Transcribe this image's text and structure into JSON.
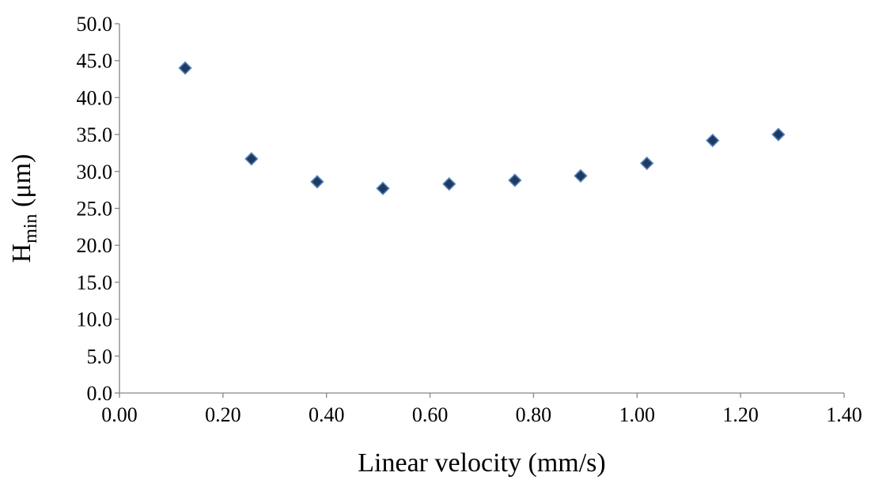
{
  "chart_data": {
    "type": "scatter",
    "title": "",
    "xlabel": "Linear velocity (mm/s)",
    "ylabel": {
      "main": "H",
      "subscript": "min",
      "suffix": " (μm)"
    },
    "xlim": [
      0.0,
      1.4
    ],
    "ylim": [
      0.0,
      50.0
    ],
    "x_ticks": [
      "0.00",
      "0.20",
      "0.40",
      "0.60",
      "0.80",
      "1.00",
      "1.20",
      "1.40"
    ],
    "y_ticks": [
      "0.0",
      "5.0",
      "10.0",
      "15.0",
      "20.0",
      "25.0",
      "30.0",
      "35.0",
      "40.0",
      "45.0",
      "50.0"
    ],
    "grid": false,
    "legend": "none",
    "marker": "diamond",
    "series": [
      {
        "x": [
          0.127,
          0.255,
          0.382,
          0.509,
          0.637,
          0.764,
          0.891,
          1.019,
          1.146,
          1.273
        ],
        "y": [
          44.0,
          31.7,
          28.6,
          27.7,
          28.3,
          28.8,
          29.4,
          31.1,
          34.2,
          35.0
        ]
      }
    ],
    "colors": {
      "marker_fill": "#1f3a5f",
      "marker_edge": "#4f81bd",
      "axis": "#868686",
      "text": "#000000"
    }
  }
}
